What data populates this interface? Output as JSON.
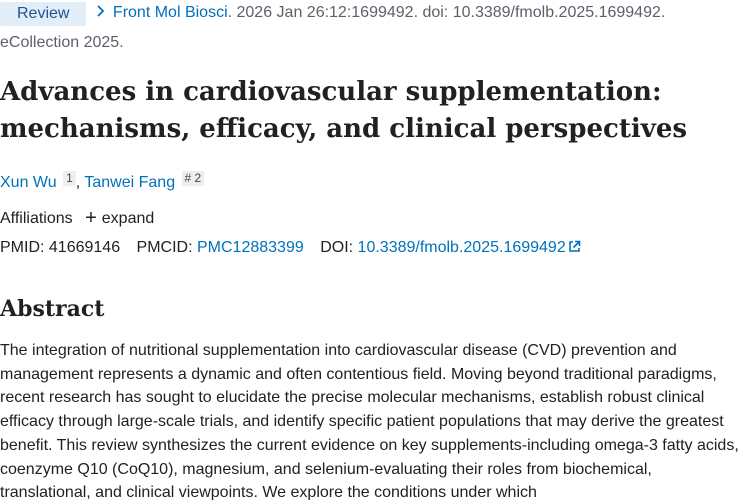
{
  "header": {
    "badge": "Review",
    "journal": "Front Mol Biosci.",
    "citation": " 2026 Jan 26:12:1699492. doi: 10.3389/fmolb.2025.1699492.",
    "ecollection": "eCollection 2025."
  },
  "article": {
    "title": "Advances in cardiovascular supplementation: mechanisms, efficacy, and clinical perspectives"
  },
  "authors": [
    {
      "name": "Xun Wu",
      "sup": "1"
    },
    {
      "name": "Tanwei Fang",
      "sup": "# 2"
    }
  ],
  "authors_separator": ", ",
  "affiliations": {
    "label": "Affiliations",
    "expand_label": "expand"
  },
  "ids": {
    "pmid_label": "PMID:",
    "pmid": "41669146",
    "pmcid_label": "PMCID:",
    "pmcid": "PMC12883399",
    "doi_label": "DOI:",
    "doi": "10.3389/fmolb.2025.1699492"
  },
  "abstract": {
    "heading": "Abstract",
    "text": "The integration of nutritional supplementation into cardiovascular disease (CVD) prevention and management represents a dynamic and often contentious field. Moving beyond traditional paradigms, recent research has sought to elucidate the precise molecular mechanisms, establish robust clinical efficacy through large-scale trials, and identify specific patient populations that may derive the greatest benefit. This review synthesizes the current evidence on key supplements-including omega-3 fatty acids, coenzyme Q10 (CoQ10), magnesium, and selenium-evaluating their roles from biochemical, translational, and clinical viewpoints. We explore the conditions under which"
  },
  "colors": {
    "link": "#0071bc",
    "badge_bg": "#e1eef8",
    "text": "#212121",
    "muted": "#5b616b"
  }
}
